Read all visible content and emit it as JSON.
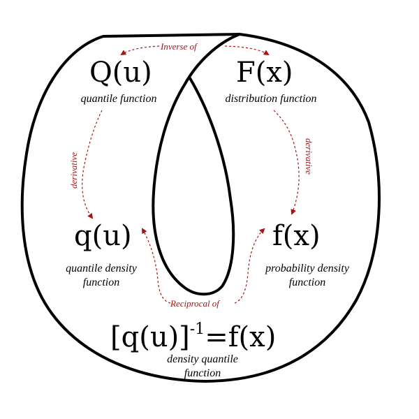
{
  "nodes": {
    "Q": {
      "symbol": "Q(u)",
      "caption": "quantile function"
    },
    "F": {
      "symbol": "F(x)",
      "caption": "distribution function"
    },
    "q": {
      "symbol": "q(u)",
      "caption_line1": "quantile  density",
      "caption_line2": "function"
    },
    "f": {
      "symbol": "f(x)",
      "caption_line1": "probability  density",
      "caption_line2": "function"
    },
    "dq": {
      "symbol_base": "[q(u)]",
      "symbol_exp": "-1",
      "symbol_rhs": "=f(x)",
      "caption_line1": "density quantile",
      "caption_line2": "function"
    }
  },
  "relations": {
    "inverse": "Inverse of",
    "reciprocal": "Reciprocal of",
    "derivative_left": "derivative",
    "derivative_right": "derivative"
  },
  "colors": {
    "outline": "#000000",
    "relation": "#a41515"
  }
}
